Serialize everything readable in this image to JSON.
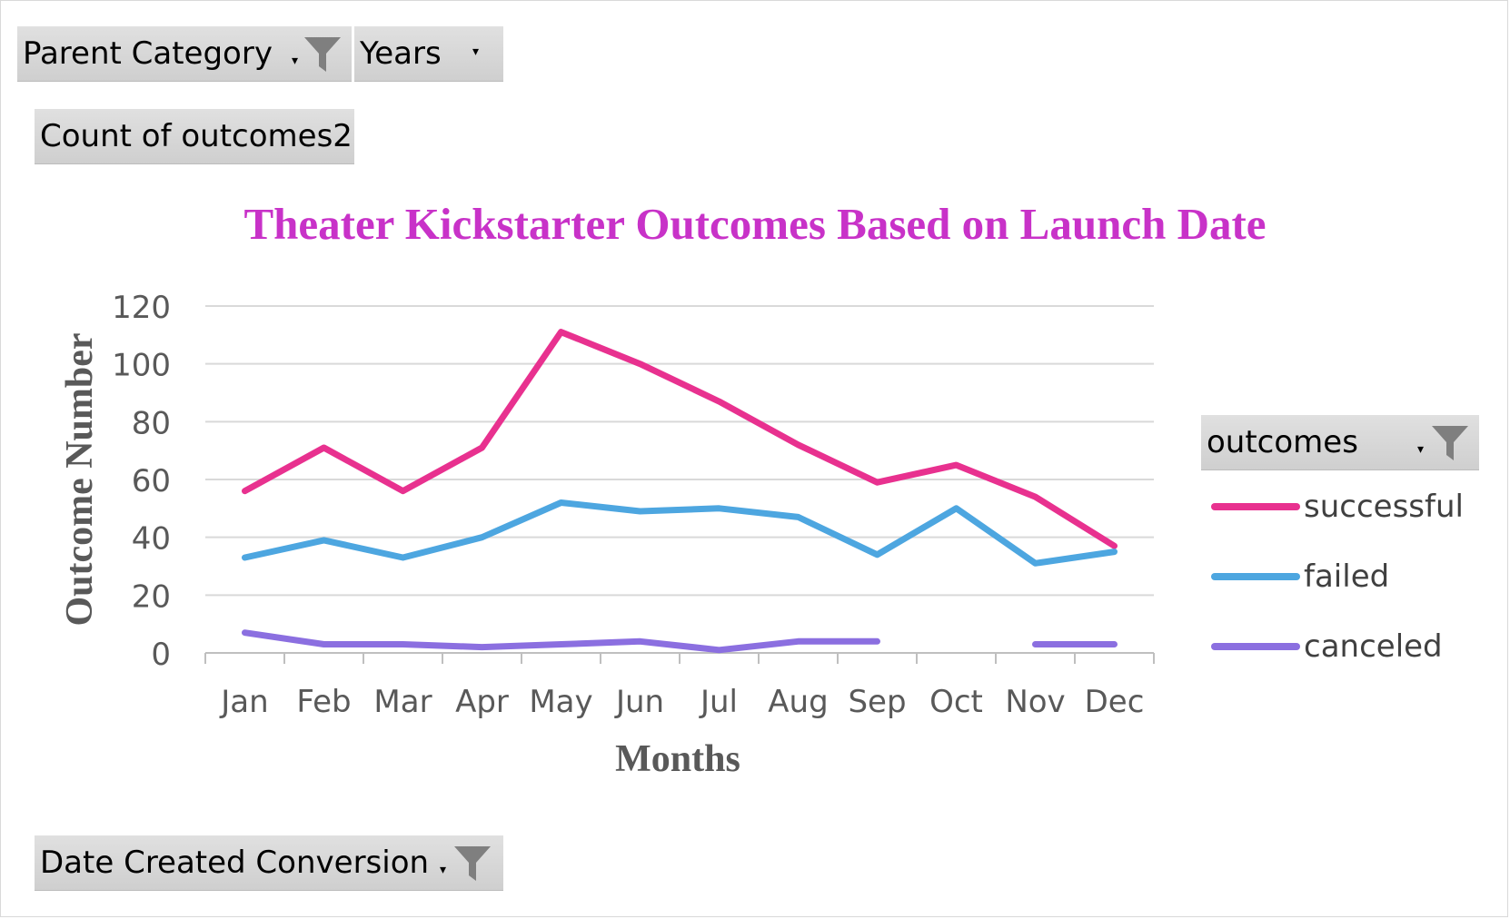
{
  "filters": {
    "parent_category": {
      "label": "Parent Category",
      "icon": "funnel-icon"
    },
    "years": {
      "label": "Years",
      "icon": "chevron-down-icon"
    },
    "value_field": {
      "label": "Count of outcomes2"
    },
    "date_created": {
      "label": "Date Created Conversion",
      "icon": "funnel-icon"
    },
    "legend_field": {
      "label": "outcomes",
      "icon": "funnel-icon"
    }
  },
  "chart_data": {
    "type": "line",
    "title": "Theater Kickstarter Outcomes Based on Launch Date",
    "xlabel": "Months",
    "ylabel": "Outcome Number",
    "ylim": [
      0,
      120
    ],
    "yticks": [
      0,
      20,
      40,
      60,
      80,
      100,
      120
    ],
    "grid": true,
    "legend_position": "right",
    "categories": [
      "Jan",
      "Feb",
      "Mar",
      "Apr",
      "May",
      "Jun",
      "Jul",
      "Aug",
      "Sep",
      "Oct",
      "Nov",
      "Dec"
    ],
    "series": [
      {
        "name": "successful",
        "color": "#e8318f",
        "values": [
          56,
          71,
          56,
          71,
          111,
          100,
          87,
          72,
          59,
          65,
          54,
          37
        ]
      },
      {
        "name": "failed",
        "color": "#4da6e0",
        "values": [
          33,
          39,
          33,
          40,
          52,
          49,
          50,
          47,
          34,
          50,
          31,
          35
        ]
      },
      {
        "name": "canceled",
        "color": "#8b6fe0",
        "values": [
          7,
          3,
          3,
          2,
          3,
          4,
          1,
          4,
          4,
          null,
          3,
          3
        ]
      }
    ]
  }
}
